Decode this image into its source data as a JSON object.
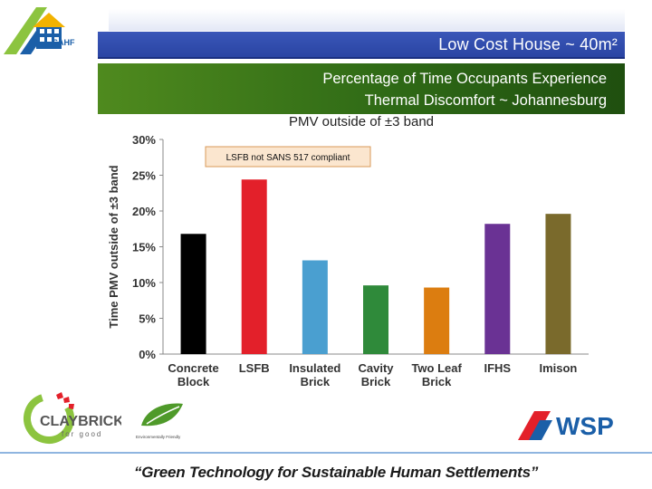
{
  "header": {
    "title": "Low Cost House ~ 40m²",
    "subtitle_line1": "Percentage of Time Occupants Experience",
    "subtitle_line2": "Thermal Discomfort ~ Johannesburg"
  },
  "logos": {
    "sahf": "SAHF",
    "claybrick_main": "CLAYBRICK",
    "claybrick_sub": "for good",
    "env_caption": "Environmentally Friendly",
    "wsp": "WSP"
  },
  "footer": {
    "tagline": "“Green Technology for Sustainable Human Settlements”"
  },
  "chart_data": {
    "type": "bar",
    "title": "PMV outside of ±3 band",
    "ylabel": "Time PMV outside of ±3 band",
    "annotation": "LSFB not SANS 517 compliant",
    "categories": [
      [
        "Concrete",
        "Block"
      ],
      [
        "LSFB"
      ],
      [
        "Insulated",
        "Brick"
      ],
      [
        "Cavity",
        "Brick"
      ],
      [
        "Two Leaf",
        "Brick"
      ],
      [
        "IFHS"
      ],
      [
        "Imison"
      ]
    ],
    "values": [
      16.8,
      24.4,
      13.1,
      9.6,
      9.3,
      18.2,
      19.6
    ],
    "colors": [
      "#000000",
      "#e3202a",
      "#4a9fd0",
      "#2f8a3a",
      "#dc7d10",
      "#6a3294",
      "#7a6a2c"
    ],
    "ylim": [
      0,
      30
    ],
    "yticks": [
      "0%",
      "5%",
      "10%",
      "15%",
      "20%",
      "25%",
      "30%"
    ],
    "grid": false
  },
  "colors": {
    "title_bar": "#2a44a3",
    "subtitle_bar": "#2f6a16"
  }
}
